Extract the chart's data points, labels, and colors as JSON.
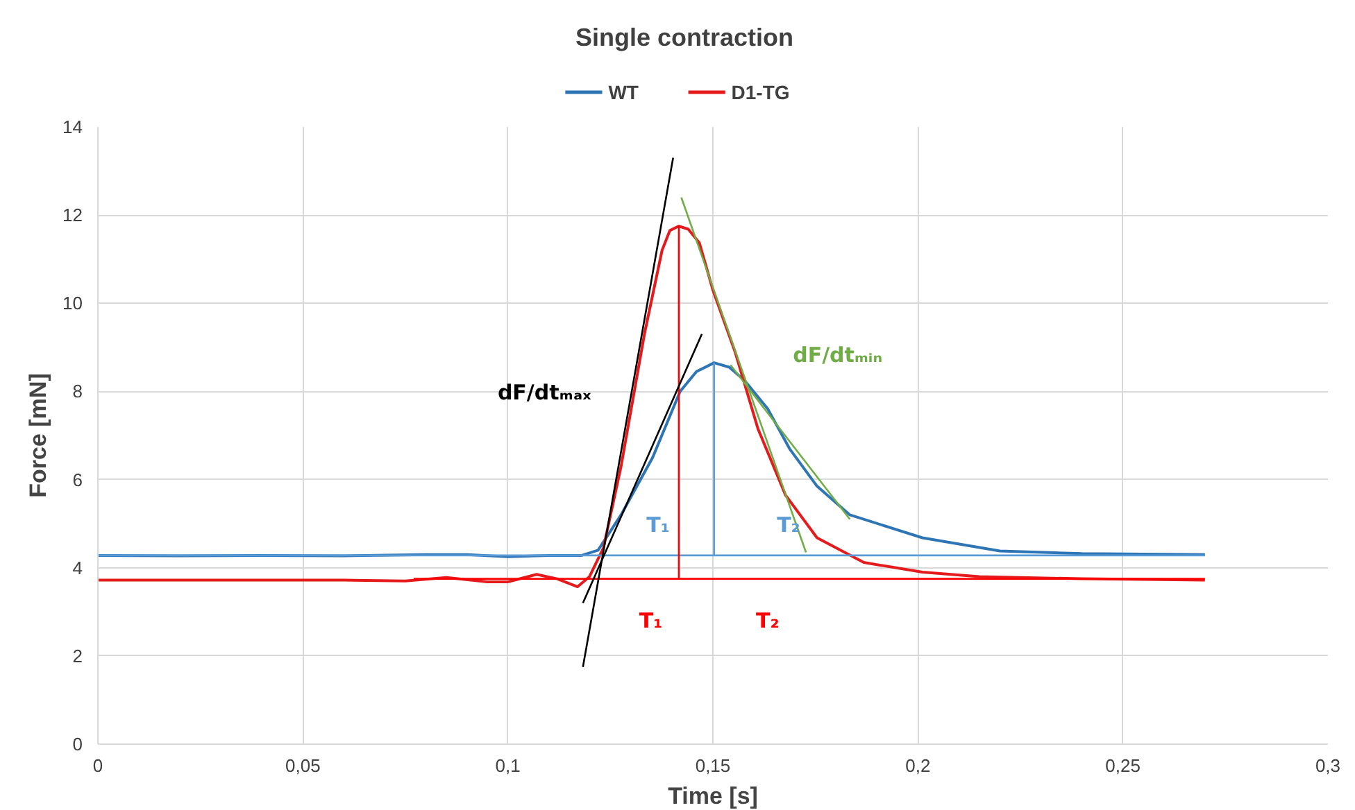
{
  "chart_data": {
    "type": "line",
    "title": "Single contraction",
    "xlabel": "Time [s]",
    "ylabel": "Force [mN]",
    "xlim": [
      0,
      0.3
    ],
    "ylim": [
      0,
      14
    ],
    "xticks": [
      0,
      {
        "value": 0.05,
        "label": "0,05"
      },
      {
        "value": 0.1,
        "label": "0,1"
      },
      {
        "value": 0.15,
        "label": "0,15"
      },
      {
        "value": 0.2,
        "label": "0,2"
      },
      {
        "value": 0.25,
        "label": "0,25"
      },
      {
        "value": 0.3,
        "label": "0,3"
      }
    ],
    "yticks": [
      0,
      2,
      4,
      6,
      8,
      10,
      12,
      14
    ],
    "grid": true,
    "legend": "top",
    "series": [
      {
        "name": "WT",
        "color": "#2e75b6",
        "x": [
          0,
          0.02,
          0.04,
          0.06,
          0.08,
          0.09,
          0.1,
          0.11,
          0.118,
          0.122,
          0.1276,
          0.1353,
          0.142,
          0.146,
          0.1503,
          0.154,
          0.1577,
          0.1634,
          0.1687,
          0.1754,
          0.1834,
          0.2011,
          0.22,
          0.24,
          0.27
        ],
        "values": [
          4.28,
          4.27,
          4.28,
          4.27,
          4.3,
          4.3,
          4.25,
          4.28,
          4.28,
          4.4,
          5.2,
          6.5,
          8.0,
          8.45,
          8.65,
          8.55,
          8.25,
          7.6,
          6.7,
          5.85,
          5.2,
          4.68,
          4.38,
          4.32,
          4.3
        ]
      },
      {
        "name": "D1-TG",
        "color": "#e41a1c",
        "x": [
          0,
          0.03,
          0.06,
          0.075,
          0.085,
          0.095,
          0.1,
          0.107,
          0.112,
          0.117,
          0.1199,
          0.1233,
          0.1276,
          0.1333,
          0.1376,
          0.1395,
          0.1417,
          0.144,
          0.1467,
          0.15,
          0.1554,
          0.161,
          0.1677,
          0.1754,
          0.1868,
          0.2011,
          0.215,
          0.24,
          0.27
        ],
        "values": [
          3.72,
          3.72,
          3.72,
          3.7,
          3.78,
          3.68,
          3.68,
          3.85,
          3.75,
          3.57,
          3.8,
          4.45,
          6.3,
          9.3,
          11.2,
          11.65,
          11.75,
          11.68,
          11.37,
          10.3,
          8.9,
          7.15,
          5.65,
          4.68,
          4.12,
          3.9,
          3.8,
          3.75,
          3.72
        ]
      },
      {
        "color": "#5b9bd5",
        "x": [
          0,
          0.27
        ],
        "values": [
          4.28,
          4.28
        ]
      },
      {
        "color": "#5b9bd5",
        "x": [
          0.1503,
          0.1503
        ],
        "values": [
          4.28,
          8.65
        ]
      },
      {
        "color": "#ff0000",
        "x": [
          0.077,
          0.27
        ],
        "values": [
          3.75,
          3.75
        ]
      },
      {
        "color": "#ff0000",
        "x": [
          0.1417,
          0.1417
        ],
        "values": [
          3.75,
          11.75
        ]
      },
      {
        "color": "#000000",
        "x": [
          0.1183,
          0.1403
        ],
        "values": [
          1.75,
          13.3
        ]
      },
      {
        "color": "#000000",
        "x": [
          0.1183,
          0.1473
        ],
        "values": [
          3.2,
          9.3
        ]
      },
      {
        "color": "#70ad47",
        "x": [
          0.1423,
          0.1727
        ],
        "values": [
          12.4,
          4.35
        ]
      },
      {
        "color": "#70ad47",
        "x": [
          0.1543,
          0.1834
        ],
        "values": [
          8.6,
          5.1
        ]
      }
    ],
    "annotations": [
      "dF/dtₘₐₓ",
      "dF/dtₘᵢₙ",
      "T₁",
      "T₂",
      "T₁",
      "T₂"
    ]
  }
}
